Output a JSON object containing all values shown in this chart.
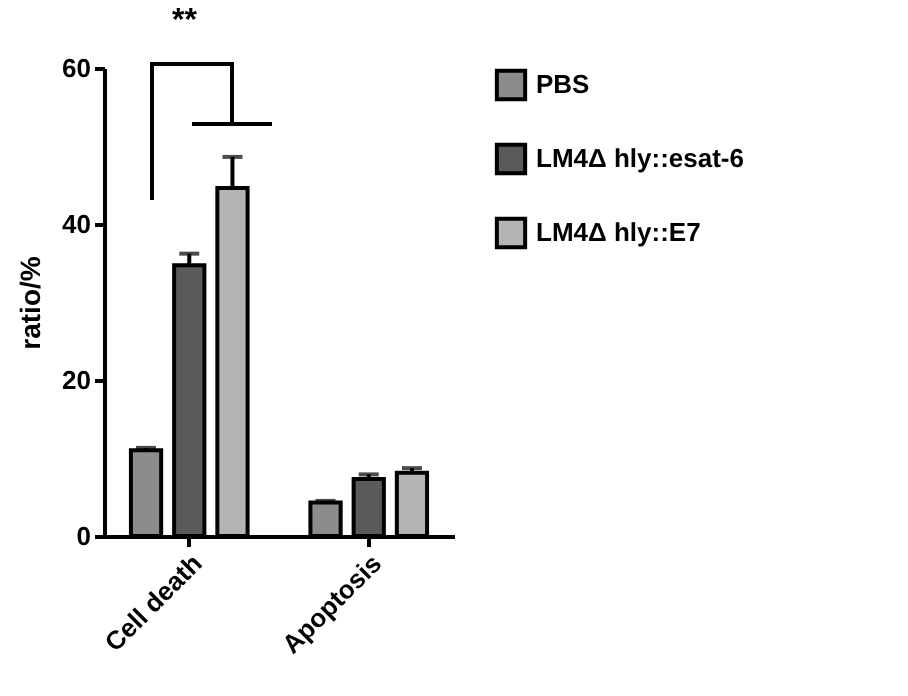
{
  "chart_data": {
    "type": "bar",
    "ylabel": "ratio/%",
    "categories": [
      "Cell death",
      "Apoptosis"
    ],
    "series": [
      {
        "name": "PBS",
        "color": "#8c8c8c",
        "values": [
          11,
          4.3
        ],
        "errors": [
          0.3,
          0.2
        ]
      },
      {
        "name": "LM4Δ hly::esat-6",
        "color": "#5a5a5a",
        "values": [
          34.7,
          7.3
        ],
        "errors": [
          1.5,
          0.6
        ]
      },
      {
        "name": "LM4Δ hly::E7",
        "color": "#b4b4b4",
        "values": [
          44.6,
          8.1
        ],
        "errors": [
          4,
          0.6
        ]
      }
    ],
    "ylim": [
      0,
      60
    ],
    "yticks": [
      0,
      20,
      40,
      60
    ],
    "grid": false,
    "legend": "right",
    "annotations": [
      "**"
    ]
  }
}
